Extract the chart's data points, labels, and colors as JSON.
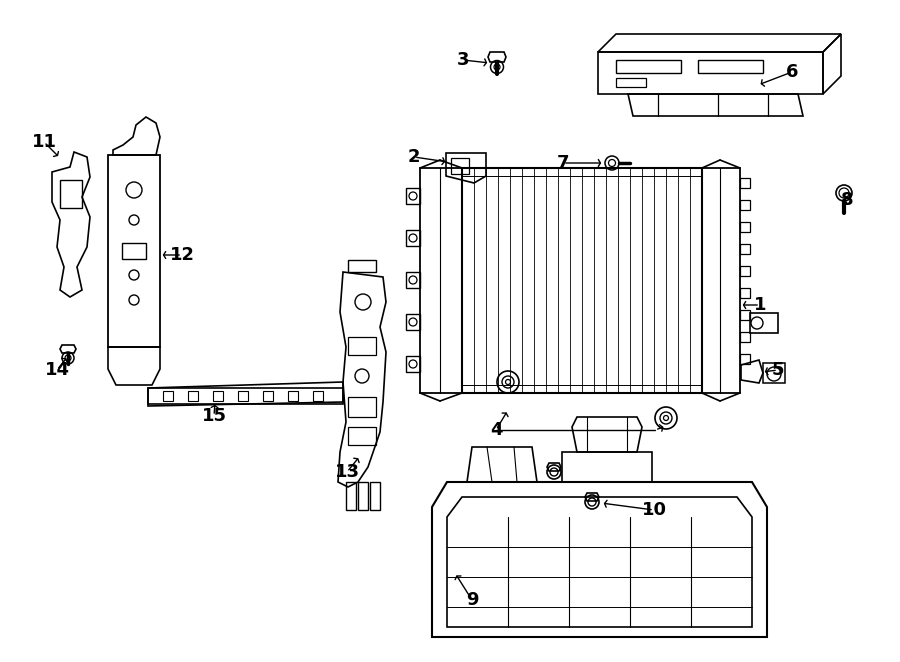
{
  "bg_color": "#ffffff",
  "line_color": "#000000",
  "lw": 1.2,
  "fig_w": 9.0,
  "fig_h": 6.62,
  "dpi": 100
}
